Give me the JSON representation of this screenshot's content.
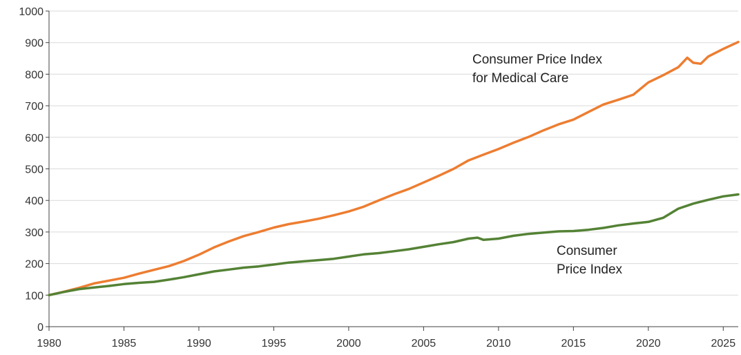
{
  "chart_data": {
    "type": "line",
    "title": "",
    "xlabel": "",
    "ylabel": "",
    "xlim": [
      1980,
      2026
    ],
    "ylim": [
      0,
      1000
    ],
    "y_ticks": [
      0,
      100,
      200,
      300,
      400,
      500,
      600,
      700,
      800,
      900,
      1000
    ],
    "x_ticks": [
      1980,
      1985,
      1990,
      1995,
      2000,
      2005,
      2010,
      2015,
      2020,
      2025
    ],
    "grid": "horizontal",
    "legend": "none",
    "annotations": [
      {
        "lines": [
          "Consumer Price Index",
          "for Medical Care"
        ],
        "series": 0
      },
      {
        "lines": [
          "Consumer",
          "Price Index"
        ],
        "series": 1
      }
    ],
    "series": [
      {
        "color": "#ED7D31",
        "x": [
          1980,
          1981,
          1982,
          1983,
          1984,
          1985,
          1986,
          1987,
          1988,
          1989,
          1990,
          1991,
          1992,
          1993,
          1994,
          1995,
          1996,
          1997,
          1998,
          1999,
          2000,
          2001,
          2002,
          2003,
          2004,
          2005,
          2006,
          2007,
          2008,
          2009,
          2010,
          2011,
          2012,
          2013,
          2014,
          2015,
          2016,
          2017,
          2018,
          2019,
          2020,
          2021,
          2022,
          2022.6,
          2023,
          2023.5,
          2024,
          2025,
          2026
        ],
        "y": [
          100,
          111,
          123,
          137,
          146,
          155,
          168,
          180,
          192,
          208,
          228,
          251,
          270,
          287,
          300,
          314,
          325,
          333,
          342,
          353,
          365,
          380,
          400,
          419,
          436,
          457,
          478,
          500,
          527,
          545,
          563,
          583,
          601,
          622,
          641,
          656,
          680,
          704,
          719,
          735,
          774,
          797,
          822,
          852,
          836,
          833,
          856,
          880,
          902
        ]
      },
      {
        "color": "#548235",
        "x": [
          1980,
          1981,
          1982,
          1983,
          1984,
          1985,
          1986,
          1987,
          1988,
          1989,
          1990,
          1991,
          1992,
          1993,
          1994,
          1995,
          1996,
          1997,
          1998,
          1999,
          2000,
          2001,
          2002,
          2003,
          2004,
          2005,
          2006,
          2007,
          2008,
          2008.6,
          2009,
          2010,
          2011,
          2012,
          2013,
          2014,
          2015,
          2016,
          2017,
          2018,
          2019,
          2020,
          2021,
          2022,
          2023,
          2024,
          2025,
          2026
        ],
        "y": [
          100,
          110,
          119,
          124,
          129,
          135,
          139,
          142,
          149,
          157,
          166,
          175,
          181,
          187,
          191,
          197,
          203,
          207,
          211,
          215,
          222,
          229,
          233,
          239,
          245,
          253,
          261,
          268,
          279,
          282,
          275,
          279,
          288,
          294,
          298,
          302,
          303,
          307,
          313,
          321,
          327,
          332,
          345,
          374,
          390,
          402,
          413,
          419
        ]
      }
    ]
  }
}
